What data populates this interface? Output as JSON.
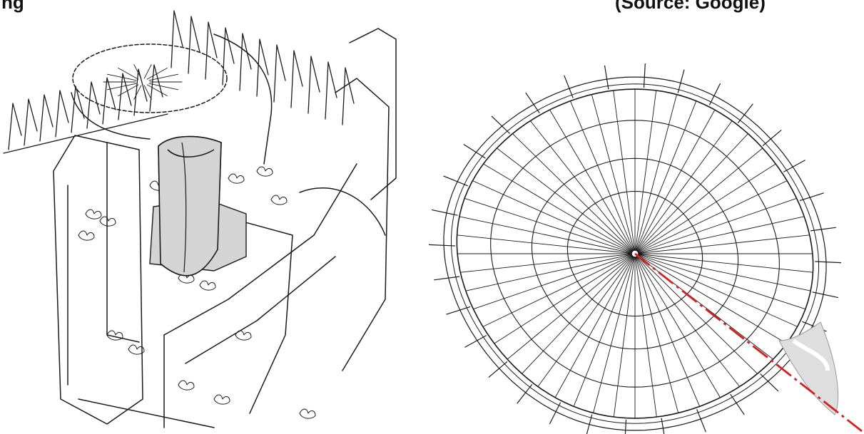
{
  "captions": {
    "left": "ng",
    "right": "(Source: Google)"
  },
  "colors": {
    "line": "#1a1a1a",
    "tower_fill": "#d4d4d4",
    "sightline": "#d42020",
    "marker_fill": "#dedede"
  },
  "icons": {
    "left_panel": "aerial-sketch",
    "right_panel": "roof-grid-plan"
  },
  "roof_plan": {
    "radial_count": 52,
    "ring_fractions": [
      0.36,
      0.55,
      0.77,
      0.95
    ],
    "mast_count": 32
  }
}
